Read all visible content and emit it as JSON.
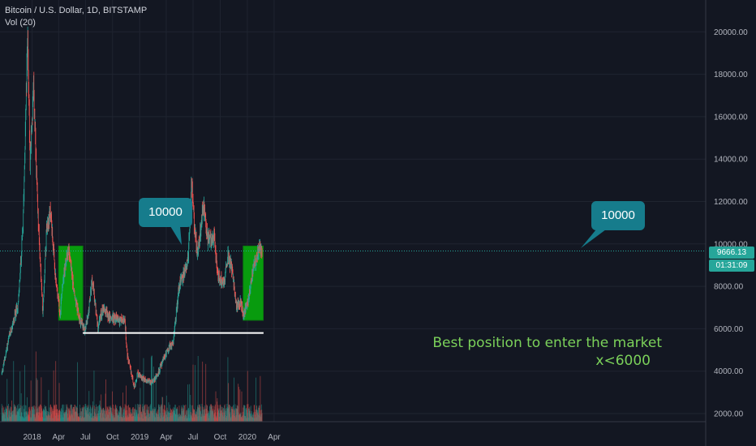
{
  "header": {
    "symbol_line": "Bitcoin / U.S. Dollar, 1D, BITSTAMP",
    "indicator_line": "Vol (20)"
  },
  "price_axis": {
    "last_price": "9666.13",
    "countdown": "01:31:09",
    "last_price_color": "#26a69a",
    "countdown_color": "#26a69a"
  },
  "annotations": {
    "callout_left": "10000",
    "callout_right": "10000",
    "support_text_line1": "Best position to enter the market",
    "support_text_line2": "x<6000",
    "highlight_color": "#089b0e",
    "callout_color": "#167c8c",
    "text_color": "#7bd15a"
  },
  "chart_data": {
    "type": "candlestick",
    "title": "Bitcoin / U.S. Dollar, 1D, BITSTAMP",
    "ylim": [
      1500,
      21400
    ],
    "y_ticks": [
      2000,
      4000,
      6000,
      8000,
      10000,
      12000,
      14000,
      16000,
      18000,
      20000
    ],
    "y_tick_labels": [
      "2000.00",
      "4000.00",
      "6000.00",
      "8000.00",
      "10000.00",
      "12000.00",
      "14000.00",
      "16000.00",
      "18000.00",
      "20000.00"
    ],
    "x_ticks": [
      "2018",
      "Apr",
      "Jul",
      "Oct",
      "2019",
      "Apr",
      "Jul",
      "Oct",
      "2020",
      "Apr"
    ],
    "x_tick_dates": [
      "2018-01-01",
      "2018-04-01",
      "2018-07-01",
      "2018-10-01",
      "2019-01-01",
      "2019-04-01",
      "2019-07-01",
      "2019-10-01",
      "2020-01-01",
      "2020-04-01"
    ],
    "grid": true,
    "up_color": "#26a69a",
    "down_color": "#ef5350",
    "last_price": 9666.13,
    "indicator": "Vol (20)",
    "price_path": [
      [
        "2017-09-20",
        3900
      ],
      [
        "2017-10-15",
        5600
      ],
      [
        "2017-11-15",
        7200
      ],
      [
        "2017-12-01",
        10800
      ],
      [
        "2017-12-10",
        16000
      ],
      [
        "2017-12-17",
        19700
      ],
      [
        "2017-12-25",
        14000
      ],
      [
        "2018-01-06",
        17200
      ],
      [
        "2018-01-20",
        11500
      ],
      [
        "2018-02-06",
        6800
      ],
      [
        "2018-02-20",
        11000
      ],
      [
        "2018-03-05",
        11500
      ],
      [
        "2018-03-20",
        8500
      ],
      [
        "2018-04-06",
        6700
      ],
      [
        "2018-04-15",
        8300
      ],
      [
        "2018-05-05",
        9800
      ],
      [
        "2018-05-25",
        7500
      ],
      [
        "2018-06-10",
        6500
      ],
      [
        "2018-06-28",
        5900
      ],
      [
        "2018-07-10",
        6600
      ],
      [
        "2018-07-24",
        8300
      ],
      [
        "2018-08-12",
        6100
      ],
      [
        "2018-08-30",
        7000
      ],
      [
        "2018-09-20",
        6500
      ],
      [
        "2018-10-15",
        6500
      ],
      [
        "2018-11-12",
        6300
      ],
      [
        "2018-11-20",
        4700
      ],
      [
        "2018-12-05",
        3800
      ],
      [
        "2018-12-15",
        3200
      ],
      [
        "2018-12-25",
        3900
      ],
      [
        "2019-01-15",
        3600
      ],
      [
        "2019-02-10",
        3500
      ],
      [
        "2019-03-01",
        3800
      ],
      [
        "2019-04-02",
        4900
      ],
      [
        "2019-04-25",
        5400
      ],
      [
        "2019-05-14",
        8000
      ],
      [
        "2019-06-01",
        8600
      ],
      [
        "2019-06-15",
        9500
      ],
      [
        "2019-06-26",
        12900
      ],
      [
        "2019-07-05",
        11000
      ],
      [
        "2019-07-16",
        9500
      ],
      [
        "2019-08-05",
        11800
      ],
      [
        "2019-08-20",
        10200
      ],
      [
        "2019-09-10",
        10300
      ],
      [
        "2019-09-25",
        8400
      ],
      [
        "2019-10-15",
        8200
      ],
      [
        "2019-10-27",
        9500
      ],
      [
        "2019-11-10",
        8800
      ],
      [
        "2019-11-25",
        7000
      ],
      [
        "2019-12-10",
        7300
      ],
      [
        "2019-12-18",
        6600
      ],
      [
        "2020-01-01",
        7200
      ],
      [
        "2020-01-20",
        8700
      ],
      [
        "2020-02-10",
        9900
      ],
      [
        "2020-02-20",
        9666
      ]
    ],
    "highlight_boxes": [
      {
        "x_start": "2018-04-01",
        "x_end": "2018-06-22",
        "y_low": 6400,
        "y_high": 9900
      },
      {
        "x_start": "2019-12-18",
        "x_end": "2020-02-24",
        "y_low": 6400,
        "y_high": 9900
      }
    ],
    "support_line": {
      "x_start": "2018-06-22",
      "x_end": "2020-02-25",
      "y": 5800
    }
  }
}
